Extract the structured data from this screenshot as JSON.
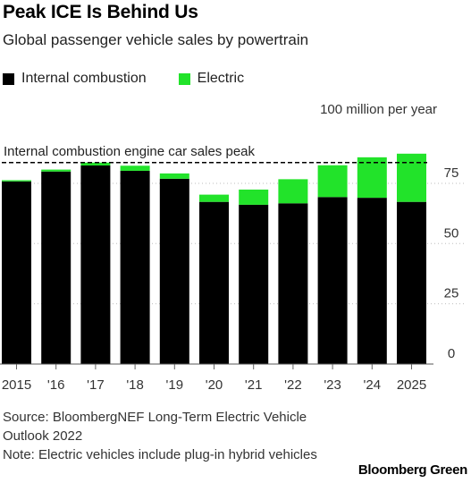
{
  "title": "Peak ICE Is Behind Us",
  "subtitle": "Global passenger vehicle sales by powertrain",
  "legend": [
    {
      "label": "Internal combustion",
      "color": "#000000"
    },
    {
      "label": "Electric",
      "color": "#22e32a"
    }
  ],
  "source_note": "Source: BloombergNEF Long-Term Electric Vehicle Outlook 2022",
  "ev_note": "Note: Electric vehicles include plug-in hybrid vehicles",
  "brand": "Bloomberg Green",
  "chart_data": {
    "type": "bar",
    "stacked": true,
    "categories": [
      "2015",
      "'16",
      "'17",
      "'18",
      "'19",
      "'20",
      "'21",
      "'22",
      "'23",
      "'24",
      "2025"
    ],
    "series": [
      {
        "name": "Internal combustion",
        "color": "#000000",
        "values": [
          75.8,
          79.9,
          82.4,
          80.2,
          76.9,
          67.3,
          66.1,
          66.7,
          69.3,
          69.0,
          67.3
        ]
      },
      {
        "name": "Electric",
        "color": "#22e32a",
        "values": [
          0.5,
          0.8,
          1.2,
          2.1,
          2.2,
          3.0,
          6.3,
          10.0,
          13.2,
          16.8,
          20.0
        ]
      }
    ],
    "ylabel": "100 million per year",
    "yticks": [
      0,
      25,
      50,
      75
    ],
    "ylim": [
      0,
      90
    ],
    "reference_line": {
      "value": 83.6,
      "label": "Internal combustion engine car sales peak",
      "style": "dashed"
    },
    "grid": "y-dotted",
    "legend_position": "top-left"
  }
}
